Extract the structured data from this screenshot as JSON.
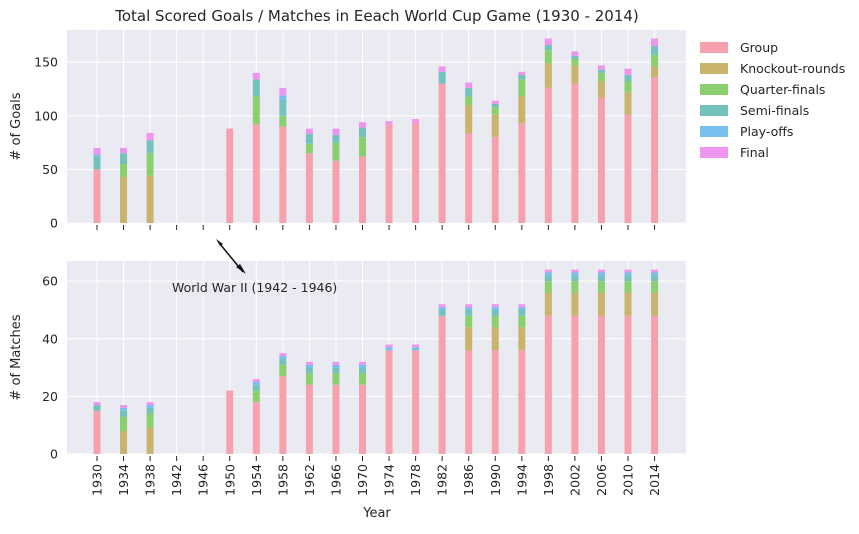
{
  "chart_data": {
    "type": "bar",
    "stacked": true,
    "title": "Total Scored Goals / Matches in Eeach World Cup Game (1930 - 2014)",
    "xlabel": "Year",
    "categories": [
      "1930",
      "1934",
      "1938",
      "1942",
      "1946",
      "1950",
      "1954",
      "1958",
      "1962",
      "1966",
      "1970",
      "1974",
      "1978",
      "1982",
      "1986",
      "1990",
      "1994",
      "1998",
      "2002",
      "2006",
      "2010",
      "2014"
    ],
    "legend": {
      "placement": "outside-right",
      "entries": [
        "Group",
        "Knockout-rounds",
        "Quarter-finals",
        "Semi-finals",
        "Play-offs",
        "Final"
      ]
    },
    "series_colors": {
      "Group": "#f7a1ae",
      "Knockout-rounds": "#c8b46b",
      "Quarter-finals": "#8ccf6e",
      "Semi-finals": "#73c2bb",
      "Play-offs": "#77bfee",
      "Final": "#ef94ef"
    },
    "panels": [
      {
        "ylabel": "# of Goals",
        "ylim": [
          0,
          180
        ],
        "yticks": [
          0,
          50,
          100,
          150
        ],
        "show_xticklabels": false,
        "series": [
          {
            "name": "Group",
            "values": [
              50,
              0,
              0,
              0,
              0,
              88,
              92,
              90,
              65,
              58,
              62,
              92,
              93,
              130,
              84,
              80,
              93,
              126,
              130,
              117,
              101,
              136
            ]
          },
          {
            "name": "Knockout-rounds",
            "values": [
              0,
              43,
              44,
              0,
              0,
              0,
              0,
              0,
              0,
              0,
              0,
              0,
              0,
              0,
              26,
              21,
              25,
              23,
              17,
              15,
              21,
              10
            ]
          },
          {
            "name": "Quarter-finals",
            "values": [
              0,
              12,
              21,
              0,
              0,
              0,
              26,
              10,
              9,
              17,
              18,
              0,
              0,
              0,
              8,
              7,
              16,
              12,
              6,
              8,
              10,
              11
            ]
          },
          {
            "name": "Semi-finals",
            "values": [
              12,
              10,
              12,
              0,
              0,
              0,
              16,
              15,
              9,
              7,
              9,
              0,
              0,
              11,
              8,
              3,
              4,
              5,
              3,
              3,
              6,
              8
            ]
          },
          {
            "name": "Play-offs",
            "values": [
              2,
              0,
              0,
              0,
              0,
              0,
              0,
              4,
              0,
              0,
              0,
              0,
              0,
              0,
              0,
              0,
              0,
              0,
              0,
              0,
              0,
              0
            ]
          },
          {
            "name": "Final",
            "values": [
              6,
              5,
              7,
              0,
              0,
              0,
              6,
              7,
              5,
              6,
              5,
              3,
              4,
              5,
              5,
              3,
              3,
              6,
              4,
              4,
              6,
              7
            ]
          }
        ]
      },
      {
        "ylabel": "# of Matches",
        "ylim": [
          0,
          67
        ],
        "yticks": [
          0,
          20,
          40,
          60
        ],
        "show_xticklabels": true,
        "series": [
          {
            "name": "Group",
            "values": [
              15,
              0,
              0,
              0,
              0,
              22,
              18,
              27,
              24,
              24,
              24,
              36,
              36,
              48,
              36,
              36,
              36,
              48,
              48,
              48,
              48,
              48
            ]
          },
          {
            "name": "Knockout-rounds",
            "values": [
              0,
              8,
              9,
              0,
              0,
              0,
              0,
              0,
              0,
              0,
              0,
              0,
              0,
              0,
              8,
              8,
              8,
              8,
              8,
              8,
              8,
              8
            ]
          },
          {
            "name": "Quarter-finals",
            "values": [
              0,
              5,
              5,
              0,
              0,
              0,
              4,
              4,
              4,
              4,
              4,
              0,
              0,
              0,
              4,
              4,
              4,
              4,
              4,
              4,
              4,
              4
            ]
          },
          {
            "name": "Semi-finals",
            "values": [
              2,
              2,
              2,
              0,
              0,
              0,
              2,
              2,
              2,
              2,
              2,
              0,
              0,
              2,
              2,
              2,
              2,
              2,
              2,
              2,
              2,
              2
            ]
          },
          {
            "name": "Play-offs",
            "values": [
              0,
              1,
              1,
              0,
              0,
              0,
              1,
              1,
              1,
              1,
              1,
              1,
              1,
              1,
              1,
              1,
              1,
              1,
              1,
              1,
              1,
              1
            ]
          },
          {
            "name": "Final",
            "values": [
              1,
              1,
              1,
              0,
              0,
              0,
              1,
              1,
              1,
              1,
              1,
              1,
              1,
              1,
              1,
              1,
              1,
              1,
              1,
              1,
              1,
              1
            ]
          }
        ]
      }
    ],
    "annotation": {
      "text": "World War II (1942 - 1946)",
      "points_to": "1946",
      "arrow": true
    },
    "grid": true
  }
}
